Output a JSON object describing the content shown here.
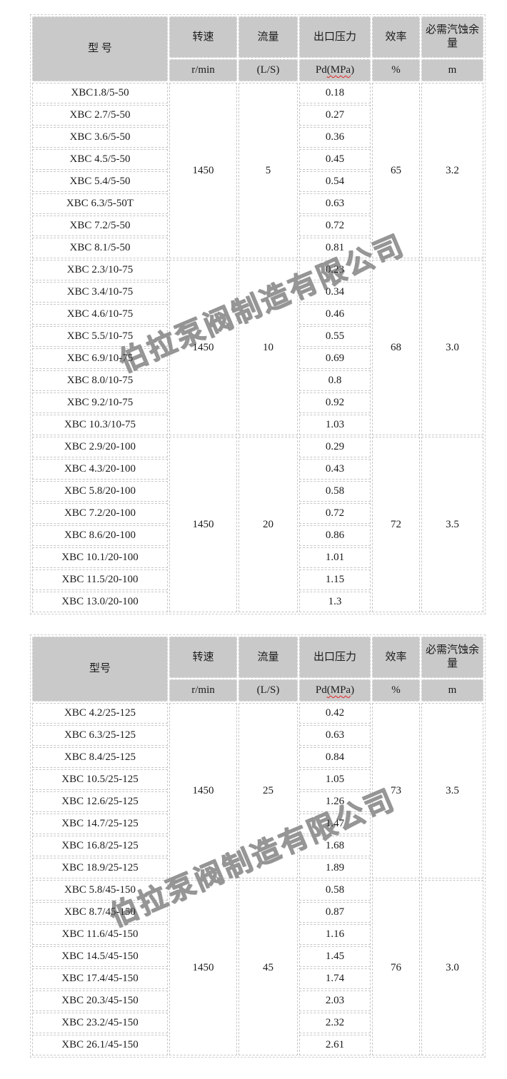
{
  "watermark": {
    "text": "伯拉泵阀制造有限公司"
  },
  "tables": [
    {
      "header": {
        "model": "型 号",
        "columns": [
          {
            "name": "转速",
            "unit": "r/min"
          },
          {
            "name": "流量",
            "unit": "(L/S)"
          },
          {
            "name": "出口压力",
            "unit_prefix": "Pd",
            "unit_wavy": "(MPa",
            "unit_suffix": ")"
          },
          {
            "name": "效率",
            "unit": "%"
          },
          {
            "name": "必需汽蚀余量",
            "unit": "m"
          }
        ]
      },
      "groups": [
        {
          "speed": "1450",
          "flow": "5",
          "efficiency": "65",
          "npsh": "3.2",
          "rows": [
            {
              "model": "XBC1.8/5-50",
              "pd": "0.18"
            },
            {
              "model": "XBC 2.7/5-50",
              "pd": "0.27"
            },
            {
              "model": "XBC 3.6/5-50",
              "pd": "0.36"
            },
            {
              "model": "XBC 4.5/5-50",
              "pd": "0.45"
            },
            {
              "model": "XBC 5.4/5-50",
              "pd": "0.54"
            },
            {
              "model": "XBC 6.3/5-50T",
              "pd": "0.63"
            },
            {
              "model": "XBC 7.2/5-50",
              "pd": "0.72"
            },
            {
              "model": "XBC 8.1/5-50",
              "pd": "0.81"
            }
          ]
        },
        {
          "speed": "1450",
          "flow": "10",
          "efficiency": "68",
          "npsh": "3.0",
          "rows": [
            {
              "model": "XBC 2.3/10-75",
              "pd": "0.23"
            },
            {
              "model": "XBC 3.4/10-75",
              "pd": "0.34"
            },
            {
              "model": "XBC 4.6/10-75",
              "pd": "0.46"
            },
            {
              "model": "XBC 5.5/10-75",
              "pd": "0.55"
            },
            {
              "model": "XBC 6.9/10-75",
              "pd": "0.69"
            },
            {
              "model": "XBC 8.0/10-75",
              "pd": "0.8"
            },
            {
              "model": "XBC 9.2/10-75",
              "pd": "0.92",
              "muted": true
            },
            {
              "model": "XBC 10.3/10-75",
              "pd": "1.03"
            }
          ]
        },
        {
          "speed": "1450",
          "flow": "20",
          "efficiency": "72",
          "npsh": "3.5",
          "rows": [
            {
              "model": "XBC 2.9/20-100",
              "pd": "0.29"
            },
            {
              "model": "XBC 4.3/20-100",
              "pd": "0.43"
            },
            {
              "model": "XBC 5.8/20-100",
              "pd": "0.58"
            },
            {
              "model": "XBC 7.2/20-100",
              "pd": "0.72"
            },
            {
              "model": "XBC 8.6/20-100",
              "pd": "0.86"
            },
            {
              "model": "XBC 10.1/20-100",
              "pd": "1.01"
            },
            {
              "model": "XBC 11.5/20-100",
              "pd": "1.15"
            },
            {
              "model": "XBC 13.0/20-100",
              "pd": "1.3"
            }
          ]
        }
      ]
    },
    {
      "header": {
        "model": "型号",
        "columns": [
          {
            "name": "转速",
            "unit": "r/min"
          },
          {
            "name": "流量",
            "unit": "(L/S)"
          },
          {
            "name": "出口压力",
            "unit_prefix": "Pd",
            "unit_wavy": "(MPa",
            "unit_suffix": ")"
          },
          {
            "name": "效率",
            "unit": "%"
          },
          {
            "name": "必需汽蚀余量",
            "unit": "m"
          }
        ]
      },
      "groups": [
        {
          "speed": "1450",
          "flow": "25",
          "efficiency": "73",
          "npsh": "3.5",
          "rows": [
            {
              "model": "XBC 4.2/25-125",
              "pd": "0.42"
            },
            {
              "model": "XBC 6.3/25-125",
              "pd": "0.63"
            },
            {
              "model": "XBC 8.4/25-125",
              "pd": "0.84"
            },
            {
              "model": "XBC 10.5/25-125",
              "pd": "1.05"
            },
            {
              "model": "XBC 12.6/25-125",
              "pd": "1.26"
            },
            {
              "model": "XBC 14.7/25-125",
              "pd": "1.47"
            },
            {
              "model": "XBC 16.8/25-125",
              "pd": "1.68"
            },
            {
              "model": "XBC 18.9/25-125",
              "pd": "1.89"
            }
          ]
        },
        {
          "speed": "1450",
          "flow": "45",
          "efficiency": "76",
          "npsh": "3.0",
          "rows": [
            {
              "model": "XBC 5.8/45-150",
              "pd": "0.58"
            },
            {
              "model": "XBC 8.7/45-150",
              "pd": "0.87"
            },
            {
              "model": "XBC 11.6/45-150",
              "pd": "1.16"
            },
            {
              "model": "XBC 14.5/45-150",
              "pd": "1.45"
            },
            {
              "model": "XBC 17.4/45-150",
              "pd": "1.74"
            },
            {
              "model": "XBC 20.3/45-150",
              "pd": "2.03",
              "muted": true
            },
            {
              "model": "XBC 23.2/45-150",
              "pd": "2.32"
            },
            {
              "model": "XBC 26.1/45-150",
              "pd": "2.61"
            }
          ]
        }
      ]
    }
  ]
}
